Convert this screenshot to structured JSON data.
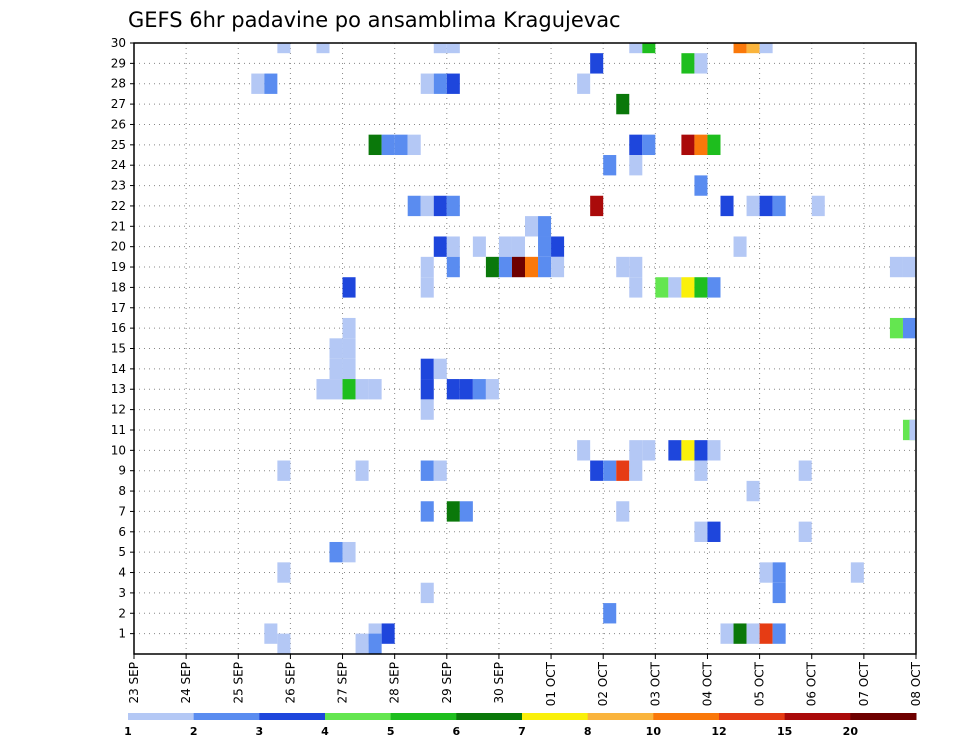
{
  "chart_data": {
    "type": "heatmap",
    "title": "GEFS 6hr padavine po ansamblima Kragujevac",
    "xlabel": "",
    "ylabel": "",
    "ensemble_members": [
      1,
      2,
      3,
      4,
      5,
      6,
      7,
      8,
      9,
      10,
      11,
      12,
      13,
      14,
      15,
      16,
      17,
      18,
      19,
      20,
      21,
      22,
      23,
      24,
      25,
      26,
      27,
      28,
      29,
      30
    ],
    "ylim": [
      0,
      30
    ],
    "time_step_hours": 6,
    "x_ticks": [
      "23 SEP",
      "24 SEP",
      "25 SEP",
      "26 SEP",
      "27 SEP",
      "28 SEP",
      "29 SEP",
      "30 SEP",
      "01 OCT",
      "02 OCT",
      "03 OCT",
      "04 OCT",
      "05 OCT",
      "06 OCT",
      "07 OCT",
      "08 OCT"
    ],
    "xlim_steps": [
      0,
      60
    ],
    "colorbar": {
      "labels": [
        "1",
        "2",
        "3",
        "4",
        "5",
        "6",
        "7",
        "8",
        "10",
        "12",
        "15",
        "20"
      ],
      "colors": [
        "#b4c8f5",
        "#5a8cf0",
        "#1e46dc",
        "#64e650",
        "#1ebe1e",
        "#0a780a",
        "#faf00a",
        "#fab43c",
        "#fa780a",
        "#e63c14",
        "#aa0a0a",
        "#6e0000"
      ]
    },
    "cells": [
      {
        "member": 30,
        "steps": [
          [
            11.5,
            0
          ],
          [
            14.5,
            0
          ],
          [
            23.5,
            0
          ],
          [
            24.5,
            0
          ],
          [
            38.5,
            0
          ],
          [
            39.5,
            4
          ],
          [
            46.5,
            8
          ],
          [
            47.5,
            7
          ],
          [
            48.5,
            0
          ]
        ]
      },
      {
        "member": 29,
        "steps": [
          [
            35.5,
            2
          ],
          [
            42.5,
            4
          ],
          [
            43.5,
            0
          ]
        ]
      },
      {
        "member": 28,
        "steps": [
          [
            9.5,
            0
          ],
          [
            10.5,
            1
          ],
          [
            22.5,
            0
          ],
          [
            23.5,
            1
          ],
          [
            24.5,
            2
          ],
          [
            34.5,
            0
          ]
        ]
      },
      {
        "member": 27,
        "steps": [
          [
            37.5,
            5
          ]
        ]
      },
      {
        "member": 25,
        "steps": [
          [
            18.5,
            5
          ],
          [
            19.5,
            1
          ],
          [
            20.5,
            1
          ],
          [
            21.5,
            0
          ],
          [
            38.5,
            2
          ],
          [
            39.5,
            1
          ],
          [
            42.5,
            10
          ],
          [
            43.5,
            8
          ],
          [
            44.5,
            4
          ]
        ]
      },
      {
        "member": 24,
        "steps": [
          [
            36.5,
            1
          ],
          [
            38.5,
            0
          ]
        ]
      },
      {
        "member": 23,
        "steps": [
          [
            43.5,
            1
          ]
        ]
      },
      {
        "member": 22,
        "steps": [
          [
            21.5,
            1
          ],
          [
            22.5,
            0
          ],
          [
            23.5,
            2
          ],
          [
            24.5,
            1
          ],
          [
            35.5,
            10
          ],
          [
            45.5,
            2
          ],
          [
            47.5,
            0
          ],
          [
            48.5,
            2
          ],
          [
            49.5,
            1
          ],
          [
            52.5,
            0
          ]
        ]
      },
      {
        "member": 21,
        "steps": [
          [
            30.5,
            0
          ],
          [
            31.5,
            1
          ]
        ]
      },
      {
        "member": 20,
        "steps": [
          [
            23.5,
            2
          ],
          [
            24.5,
            0
          ],
          [
            26.5,
            0
          ],
          [
            28.5,
            0
          ],
          [
            29.5,
            0
          ],
          [
            31.5,
            1
          ],
          [
            32.5,
            2
          ],
          [
            46.5,
            0
          ]
        ]
      },
      {
        "member": 19,
        "steps": [
          [
            22.5,
            0
          ],
          [
            24.5,
            1
          ],
          [
            27.5,
            5
          ],
          [
            28.5,
            1
          ],
          [
            29.5,
            11
          ],
          [
            30.5,
            8
          ],
          [
            31.5,
            1
          ],
          [
            32.5,
            0
          ],
          [
            37.5,
            0
          ],
          [
            38.5,
            0
          ],
          [
            58.5,
            0
          ],
          [
            59.5,
            0
          ]
        ]
      },
      {
        "member": 18,
        "steps": [
          [
            16.5,
            2
          ],
          [
            22.5,
            0
          ],
          [
            38.5,
            0
          ],
          [
            40.5,
            3
          ],
          [
            41.5,
            0
          ],
          [
            42.5,
            6
          ],
          [
            43.5,
            4
          ],
          [
            44.5,
            1
          ]
        ]
      },
      {
        "member": 16,
        "steps": [
          [
            16.5,
            0
          ],
          [
            58.5,
            3
          ],
          [
            59.5,
            1
          ]
        ]
      },
      {
        "member": 15,
        "steps": [
          [
            15.5,
            0
          ],
          [
            16.5,
            0
          ]
        ]
      },
      {
        "member": 14,
        "steps": [
          [
            15.5,
            0
          ],
          [
            16.5,
            0
          ],
          [
            22.5,
            2
          ],
          [
            23.5,
            0
          ]
        ]
      },
      {
        "member": 13,
        "steps": [
          [
            14.5,
            0
          ],
          [
            15.5,
            0
          ],
          [
            16.5,
            4
          ],
          [
            17.5,
            0
          ],
          [
            18.5,
            0
          ],
          [
            22.5,
            2
          ],
          [
            24.5,
            2
          ],
          [
            25.5,
            2
          ],
          [
            26.5,
            1
          ],
          [
            27.5,
            0
          ]
        ]
      },
      {
        "member": 12,
        "steps": [
          [
            22.5,
            0
          ]
        ]
      },
      {
        "member": 11,
        "steps": [
          [
            59.5,
            3
          ],
          [
            60.0,
            0
          ]
        ]
      },
      {
        "member": 10,
        "steps": [
          [
            34.5,
            0
          ],
          [
            38.5,
            0
          ],
          [
            39.5,
            0
          ],
          [
            41.5,
            2
          ],
          [
            42.5,
            6
          ],
          [
            43.5,
            2
          ],
          [
            44.5,
            0
          ]
        ]
      },
      {
        "member": 9,
        "steps": [
          [
            11.5,
            0
          ],
          [
            17.5,
            0
          ],
          [
            22.5,
            1
          ],
          [
            23.5,
            0
          ],
          [
            35.5,
            2
          ],
          [
            36.5,
            1
          ],
          [
            37.5,
            9
          ],
          [
            38.5,
            0
          ],
          [
            43.5,
            0
          ],
          [
            51.5,
            0
          ]
        ]
      },
      {
        "member": 8,
        "steps": [
          [
            47.5,
            0
          ]
        ]
      },
      {
        "member": 7,
        "steps": [
          [
            22.5,
            1
          ],
          [
            24.5,
            5
          ],
          [
            25.5,
            1
          ],
          [
            37.5,
            0
          ]
        ]
      },
      {
        "member": 6,
        "steps": [
          [
            43.5,
            0
          ],
          [
            44.5,
            2
          ],
          [
            51.5,
            0
          ]
        ]
      },
      {
        "member": 5,
        "steps": [
          [
            15.5,
            1
          ],
          [
            16.5,
            0
          ]
        ]
      },
      {
        "member": 4,
        "steps": [
          [
            11.5,
            0
          ],
          [
            48.5,
            0
          ],
          [
            49.5,
            1
          ],
          [
            55.5,
            0
          ]
        ]
      },
      {
        "member": 3,
        "steps": [
          [
            22.5,
            0
          ],
          [
            49.5,
            1
          ]
        ]
      },
      {
        "member": 2,
        "steps": [
          [
            36.5,
            1
          ]
        ]
      },
      {
        "member": 1,
        "steps": [
          [
            10.5,
            0
          ],
          [
            18.5,
            0
          ],
          [
            19.5,
            2
          ],
          [
            45.5,
            0
          ],
          [
            46.5,
            5
          ],
          [
            47.5,
            0
          ],
          [
            48.5,
            9
          ],
          [
            49.5,
            1
          ]
        ]
      },
      {
        "member": 0.5,
        "steps": [
          [
            11.5,
            0
          ],
          [
            17.5,
            0
          ],
          [
            18.5,
            1
          ]
        ]
      }
    ]
  }
}
